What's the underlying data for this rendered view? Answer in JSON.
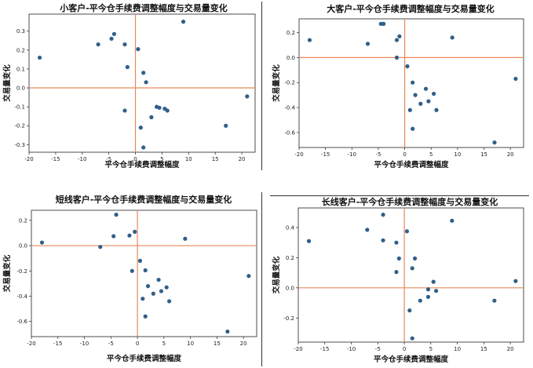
{
  "chart_data": [
    {
      "type": "scatter",
      "title": "小客户-平今仓手续费调整幅度与交易量变化",
      "xlabel": "平今仓手续费调整幅度",
      "ylabel": "交易量变化",
      "xlim": [
        -20,
        22.5
      ],
      "ylim": [
        -0.34,
        0.39
      ],
      "xticks": [
        -20,
        -15,
        -10,
        -5,
        0,
        5,
        10,
        15,
        20
      ],
      "yticks": [
        -0.3,
        -0.2,
        -0.1,
        0.0,
        0.1,
        0.2,
        0.3
      ],
      "ytick_labels": [
        "-0.3",
        "-0.2",
        "-0.1",
        "0.0",
        "0.1",
        "0.2",
        "0.3"
      ],
      "marker_color": "#2f5f8a",
      "line_color": "#e8895a",
      "grid": false,
      "points": [
        {
          "x": -18,
          "y": 0.16
        },
        {
          "x": -7,
          "y": 0.23
        },
        {
          "x": -4.5,
          "y": 0.26
        },
        {
          "x": -4,
          "y": 0.285
        },
        {
          "x": -2,
          "y": 0.23
        },
        {
          "x": -1.5,
          "y": 0.11
        },
        {
          "x": 0.5,
          "y": 0.205
        },
        {
          "x": 1.5,
          "y": 0.08
        },
        {
          "x": 2,
          "y": 0.03
        },
        {
          "x": 9,
          "y": 0.35
        },
        {
          "x": 21,
          "y": -0.045
        },
        {
          "x": 4,
          "y": -0.1
        },
        {
          "x": 4.5,
          "y": -0.105
        },
        {
          "x": 5.5,
          "y": -0.11
        },
        {
          "x": 6,
          "y": -0.12
        },
        {
          "x": 3,
          "y": -0.155
        },
        {
          "x": -2,
          "y": -0.12
        },
        {
          "x": 1,
          "y": -0.21
        },
        {
          "x": 17,
          "y": -0.2
        },
        {
          "x": 1.5,
          "y": -0.315
        }
      ]
    },
    {
      "type": "scatter",
      "title": "大客户-平今仓手续费调整幅度与交易量变化",
      "xlabel": "平今仓手续费调整幅度",
      "ylabel": "交易量变化",
      "xlim": [
        -20,
        22.5
      ],
      "ylim": [
        -0.72,
        0.31
      ],
      "xticks": [
        -20,
        -15,
        -10,
        -5,
        0,
        5,
        10,
        15,
        20
      ],
      "yticks": [
        -0.6,
        -0.4,
        -0.2,
        0.0,
        0.2
      ],
      "ytick_labels": [
        "-0.6",
        "-0.4",
        "-0.2",
        "0.0",
        "0.2"
      ],
      "marker_color": "#2f5f8a",
      "line_color": "#e8895a",
      "grid": false,
      "points": [
        {
          "x": -18,
          "y": 0.14
        },
        {
          "x": -7,
          "y": 0.11
        },
        {
          "x": -4.5,
          "y": 0.27
        },
        {
          "x": -4,
          "y": 0.27
        },
        {
          "x": -1,
          "y": 0.17
        },
        {
          "x": -1.5,
          "y": 0.14
        },
        {
          "x": -1.5,
          "y": 0.0
        },
        {
          "x": 0.5,
          "y": -0.07
        },
        {
          "x": 9,
          "y": 0.16
        },
        {
          "x": 21,
          "y": -0.17
        },
        {
          "x": 1.5,
          "y": -0.2
        },
        {
          "x": 2,
          "y": -0.3
        },
        {
          "x": 4,
          "y": -0.25
        },
        {
          "x": 5.5,
          "y": -0.29
        },
        {
          "x": 3,
          "y": -0.37
        },
        {
          "x": 4.5,
          "y": -0.35
        },
        {
          "x": 1,
          "y": -0.42
        },
        {
          "x": 6,
          "y": -0.42
        },
        {
          "x": 1.5,
          "y": -0.57
        },
        {
          "x": 17,
          "y": -0.68
        }
      ]
    },
    {
      "type": "scatter",
      "title": "短线客户-平今仓手续费调整幅度与交易量变化",
      "xlabel": "平今仓手续费调整幅度",
      "ylabel": "交易量变化",
      "xlim": [
        -20,
        22.5
      ],
      "ylim": [
        -0.72,
        0.28
      ],
      "xticks": [
        -20,
        -15,
        -10,
        -5,
        0,
        5,
        10,
        15,
        20
      ],
      "yticks": [
        -0.6,
        -0.4,
        -0.2,
        0.0,
        0.2
      ],
      "ytick_labels": [
        "-0.6",
        "-0.4",
        "-0.2",
        "0.0",
        "0.2"
      ],
      "marker_color": "#2f5f8a",
      "line_color": "#e8895a",
      "grid": false,
      "points": [
        {
          "x": -18,
          "y": 0.025
        },
        {
          "x": -7,
          "y": -0.01
        },
        {
          "x": -4,
          "y": 0.245
        },
        {
          "x": -4.5,
          "y": 0.075
        },
        {
          "x": -1.5,
          "y": 0.08
        },
        {
          "x": -0.5,
          "y": 0.11
        },
        {
          "x": -1,
          "y": -0.2
        },
        {
          "x": 0.5,
          "y": -0.12
        },
        {
          "x": 9,
          "y": 0.055
        },
        {
          "x": 21,
          "y": -0.24
        },
        {
          "x": 1.5,
          "y": -0.195
        },
        {
          "x": 2,
          "y": -0.32
        },
        {
          "x": 4,
          "y": -0.27
        },
        {
          "x": 5.5,
          "y": -0.33
        },
        {
          "x": 3,
          "y": -0.38
        },
        {
          "x": 4.5,
          "y": -0.36
        },
        {
          "x": 1,
          "y": -0.42
        },
        {
          "x": 6,
          "y": -0.44
        },
        {
          "x": 1.5,
          "y": -0.56
        },
        {
          "x": 17,
          "y": -0.68
        }
      ]
    },
    {
      "type": "scatter",
      "title": "长线客户-平今仓手续费调整幅度与交易量变化",
      "xlabel": "平今仓手续费调整幅度",
      "ylabel": "交易量变化",
      "xlim": [
        -20,
        22.5
      ],
      "ylim": [
        -0.36,
        0.53
      ],
      "xticks": [
        -20,
        -15,
        -10,
        -5,
        0,
        5,
        10,
        15,
        20
      ],
      "yticks": [
        -0.2,
        0.0,
        0.2,
        0.4
      ],
      "ytick_labels": [
        "-0.2",
        "0.0",
        "0.2",
        "0.4"
      ],
      "marker_color": "#2f5f8a",
      "line_color": "#e8895a",
      "grid": false,
      "points": [
        {
          "x": -18,
          "y": 0.31
        },
        {
          "x": -7,
          "y": 0.385
        },
        {
          "x": -4,
          "y": 0.485
        },
        {
          "x": -4,
          "y": 0.315
        },
        {
          "x": -1.5,
          "y": 0.3
        },
        {
          "x": -1,
          "y": 0.195
        },
        {
          "x": -1.5,
          "y": 0.105
        },
        {
          "x": 0.5,
          "y": 0.375
        },
        {
          "x": 9,
          "y": 0.445
        },
        {
          "x": 21,
          "y": 0.045
        },
        {
          "x": 1.5,
          "y": 0.13
        },
        {
          "x": 2,
          "y": 0.195
        },
        {
          "x": 4.5,
          "y": -0.01
        },
        {
          "x": 5.5,
          "y": 0.04
        },
        {
          "x": 6,
          "y": -0.02
        },
        {
          "x": 3,
          "y": -0.085
        },
        {
          "x": 4.5,
          "y": -0.06
        },
        {
          "x": 1,
          "y": -0.15
        },
        {
          "x": 17,
          "y": -0.085
        },
        {
          "x": 1.5,
          "y": -0.335
        }
      ]
    }
  ]
}
